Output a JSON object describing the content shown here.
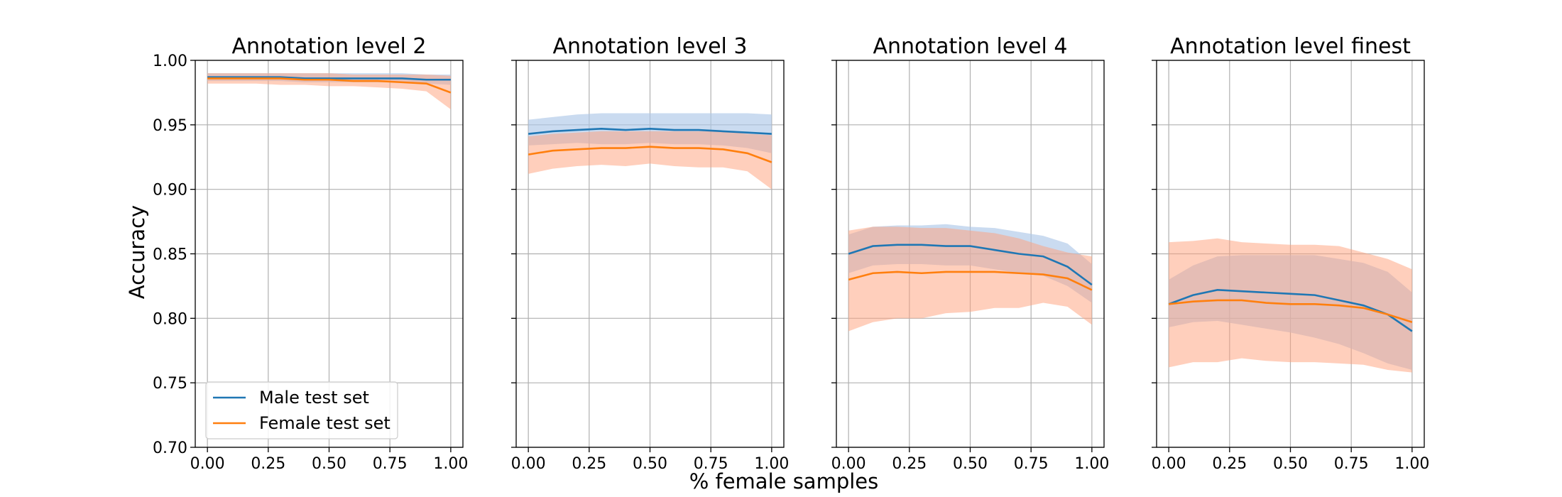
{
  "chart_data": {
    "type": "line",
    "xlabel": "% female samples",
    "ylabel": "Accuracy",
    "xlim": [
      -0.05,
      1.05
    ],
    "ylim": [
      0.7,
      1.0
    ],
    "xticks": [
      "0.00",
      "0.25",
      "0.50",
      "0.75",
      "1.00"
    ],
    "yticks": [
      "0.70",
      "0.75",
      "0.80",
      "0.85",
      "0.90",
      "0.95",
      "1.00"
    ],
    "grid": true,
    "sharey": true,
    "legend": {
      "placement": "lower-left",
      "entries": [
        {
          "label": "Male test set",
          "color": "#1f77b4"
        },
        {
          "label": "Female test set",
          "color": "#ff7f0e"
        }
      ]
    },
    "band_colors": {
      "male": "#aec7e8",
      "female": "#ffa07a"
    },
    "x": [
      0.0,
      0.1,
      0.2,
      0.3,
      0.4,
      0.5,
      0.6,
      0.7,
      0.8,
      0.9,
      1.0
    ],
    "panels": [
      {
        "title": "Annotation level 2",
        "series": [
          {
            "name": "Male test set",
            "color": "#1f77b4",
            "values": [
              0.987,
              0.987,
              0.987,
              0.987,
              0.986,
              0.986,
              0.986,
              0.986,
              0.986,
              0.985,
              0.985
            ],
            "lower": [
              0.984,
              0.984,
              0.984,
              0.984,
              0.983,
              0.983,
              0.983,
              0.983,
              0.983,
              0.982,
              0.981
            ],
            "upper": [
              0.99,
              0.99,
              0.99,
              0.99,
              0.99,
              0.99,
              0.99,
              0.99,
              0.99,
              0.989,
              0.989
            ]
          },
          {
            "name": "Female test set",
            "color": "#ff7f0e",
            "values": [
              0.986,
              0.986,
              0.986,
              0.986,
              0.985,
              0.985,
              0.984,
              0.984,
              0.983,
              0.982,
              0.975
            ],
            "lower": [
              0.982,
              0.982,
              0.982,
              0.981,
              0.981,
              0.98,
              0.98,
              0.979,
              0.978,
              0.976,
              0.962
            ],
            "upper": [
              0.99,
              0.99,
              0.99,
              0.99,
              0.99,
              0.99,
              0.989,
              0.989,
              0.989,
              0.989,
              0.988
            ]
          }
        ]
      },
      {
        "title": "Annotation level 3",
        "series": [
          {
            "name": "Male test set",
            "color": "#1f77b4",
            "values": [
              0.943,
              0.945,
              0.946,
              0.947,
              0.946,
              0.947,
              0.946,
              0.946,
              0.945,
              0.944,
              0.943
            ],
            "lower": [
              0.934,
              0.935,
              0.936,
              0.935,
              0.935,
              0.936,
              0.935,
              0.935,
              0.934,
              0.932,
              0.928
            ],
            "upper": [
              0.954,
              0.956,
              0.958,
              0.959,
              0.959,
              0.959,
              0.959,
              0.959,
              0.959,
              0.959,
              0.958
            ]
          },
          {
            "name": "Female test set",
            "color": "#ff7f0e",
            "values": [
              0.927,
              0.93,
              0.931,
              0.932,
              0.932,
              0.933,
              0.932,
              0.932,
              0.931,
              0.928,
              0.921
            ],
            "lower": [
              0.912,
              0.916,
              0.918,
              0.919,
              0.918,
              0.92,
              0.918,
              0.917,
              0.917,
              0.914,
              0.9
            ],
            "upper": [
              0.941,
              0.943,
              0.944,
              0.945,
              0.945,
              0.945,
              0.945,
              0.945,
              0.945,
              0.943,
              0.942
            ]
          }
        ]
      },
      {
        "title": "Annotation level 4",
        "series": [
          {
            "name": "Male test set",
            "color": "#1f77b4",
            "values": [
              0.85,
              0.856,
              0.857,
              0.857,
              0.856,
              0.856,
              0.853,
              0.85,
              0.848,
              0.84,
              0.826
            ],
            "lower": [
              0.835,
              0.841,
              0.842,
              0.842,
              0.841,
              0.841,
              0.838,
              0.835,
              0.833,
              0.825,
              0.812
            ],
            "upper": [
              0.865,
              0.871,
              0.872,
              0.872,
              0.873,
              0.871,
              0.87,
              0.867,
              0.864,
              0.858,
              0.842
            ]
          },
          {
            "name": "Female test set",
            "color": "#ff7f0e",
            "values": [
              0.83,
              0.835,
              0.836,
              0.835,
              0.836,
              0.836,
              0.836,
              0.835,
              0.834,
              0.831,
              0.822
            ],
            "lower": [
              0.79,
              0.797,
              0.8,
              0.8,
              0.804,
              0.805,
              0.808,
              0.808,
              0.812,
              0.809,
              0.795
            ],
            "upper": [
              0.868,
              0.871,
              0.871,
              0.87,
              0.87,
              0.868,
              0.866,
              0.862,
              0.856,
              0.851,
              0.848
            ]
          }
        ]
      },
      {
        "title": "Annotation level finest",
        "series": [
          {
            "name": "Male test set",
            "color": "#1f77b4",
            "values": [
              0.811,
              0.818,
              0.822,
              0.821,
              0.82,
              0.819,
              0.818,
              0.814,
              0.81,
              0.803,
              0.79
            ],
            "lower": [
              0.793,
              0.797,
              0.798,
              0.795,
              0.792,
              0.789,
              0.785,
              0.78,
              0.773,
              0.765,
              0.76
            ],
            "upper": [
              0.83,
              0.841,
              0.848,
              0.849,
              0.849,
              0.849,
              0.849,
              0.846,
              0.843,
              0.836,
              0.82
            ]
          },
          {
            "name": "Female test set",
            "color": "#ff7f0e",
            "values": [
              0.811,
              0.813,
              0.814,
              0.814,
              0.812,
              0.811,
              0.811,
              0.81,
              0.808,
              0.803,
              0.797
            ],
            "lower": [
              0.762,
              0.766,
              0.766,
              0.769,
              0.767,
              0.766,
              0.766,
              0.765,
              0.764,
              0.76,
              0.758
            ],
            "upper": [
              0.859,
              0.86,
              0.862,
              0.859,
              0.858,
              0.857,
              0.857,
              0.856,
              0.851,
              0.846,
              0.838
            ]
          }
        ]
      }
    ]
  }
}
